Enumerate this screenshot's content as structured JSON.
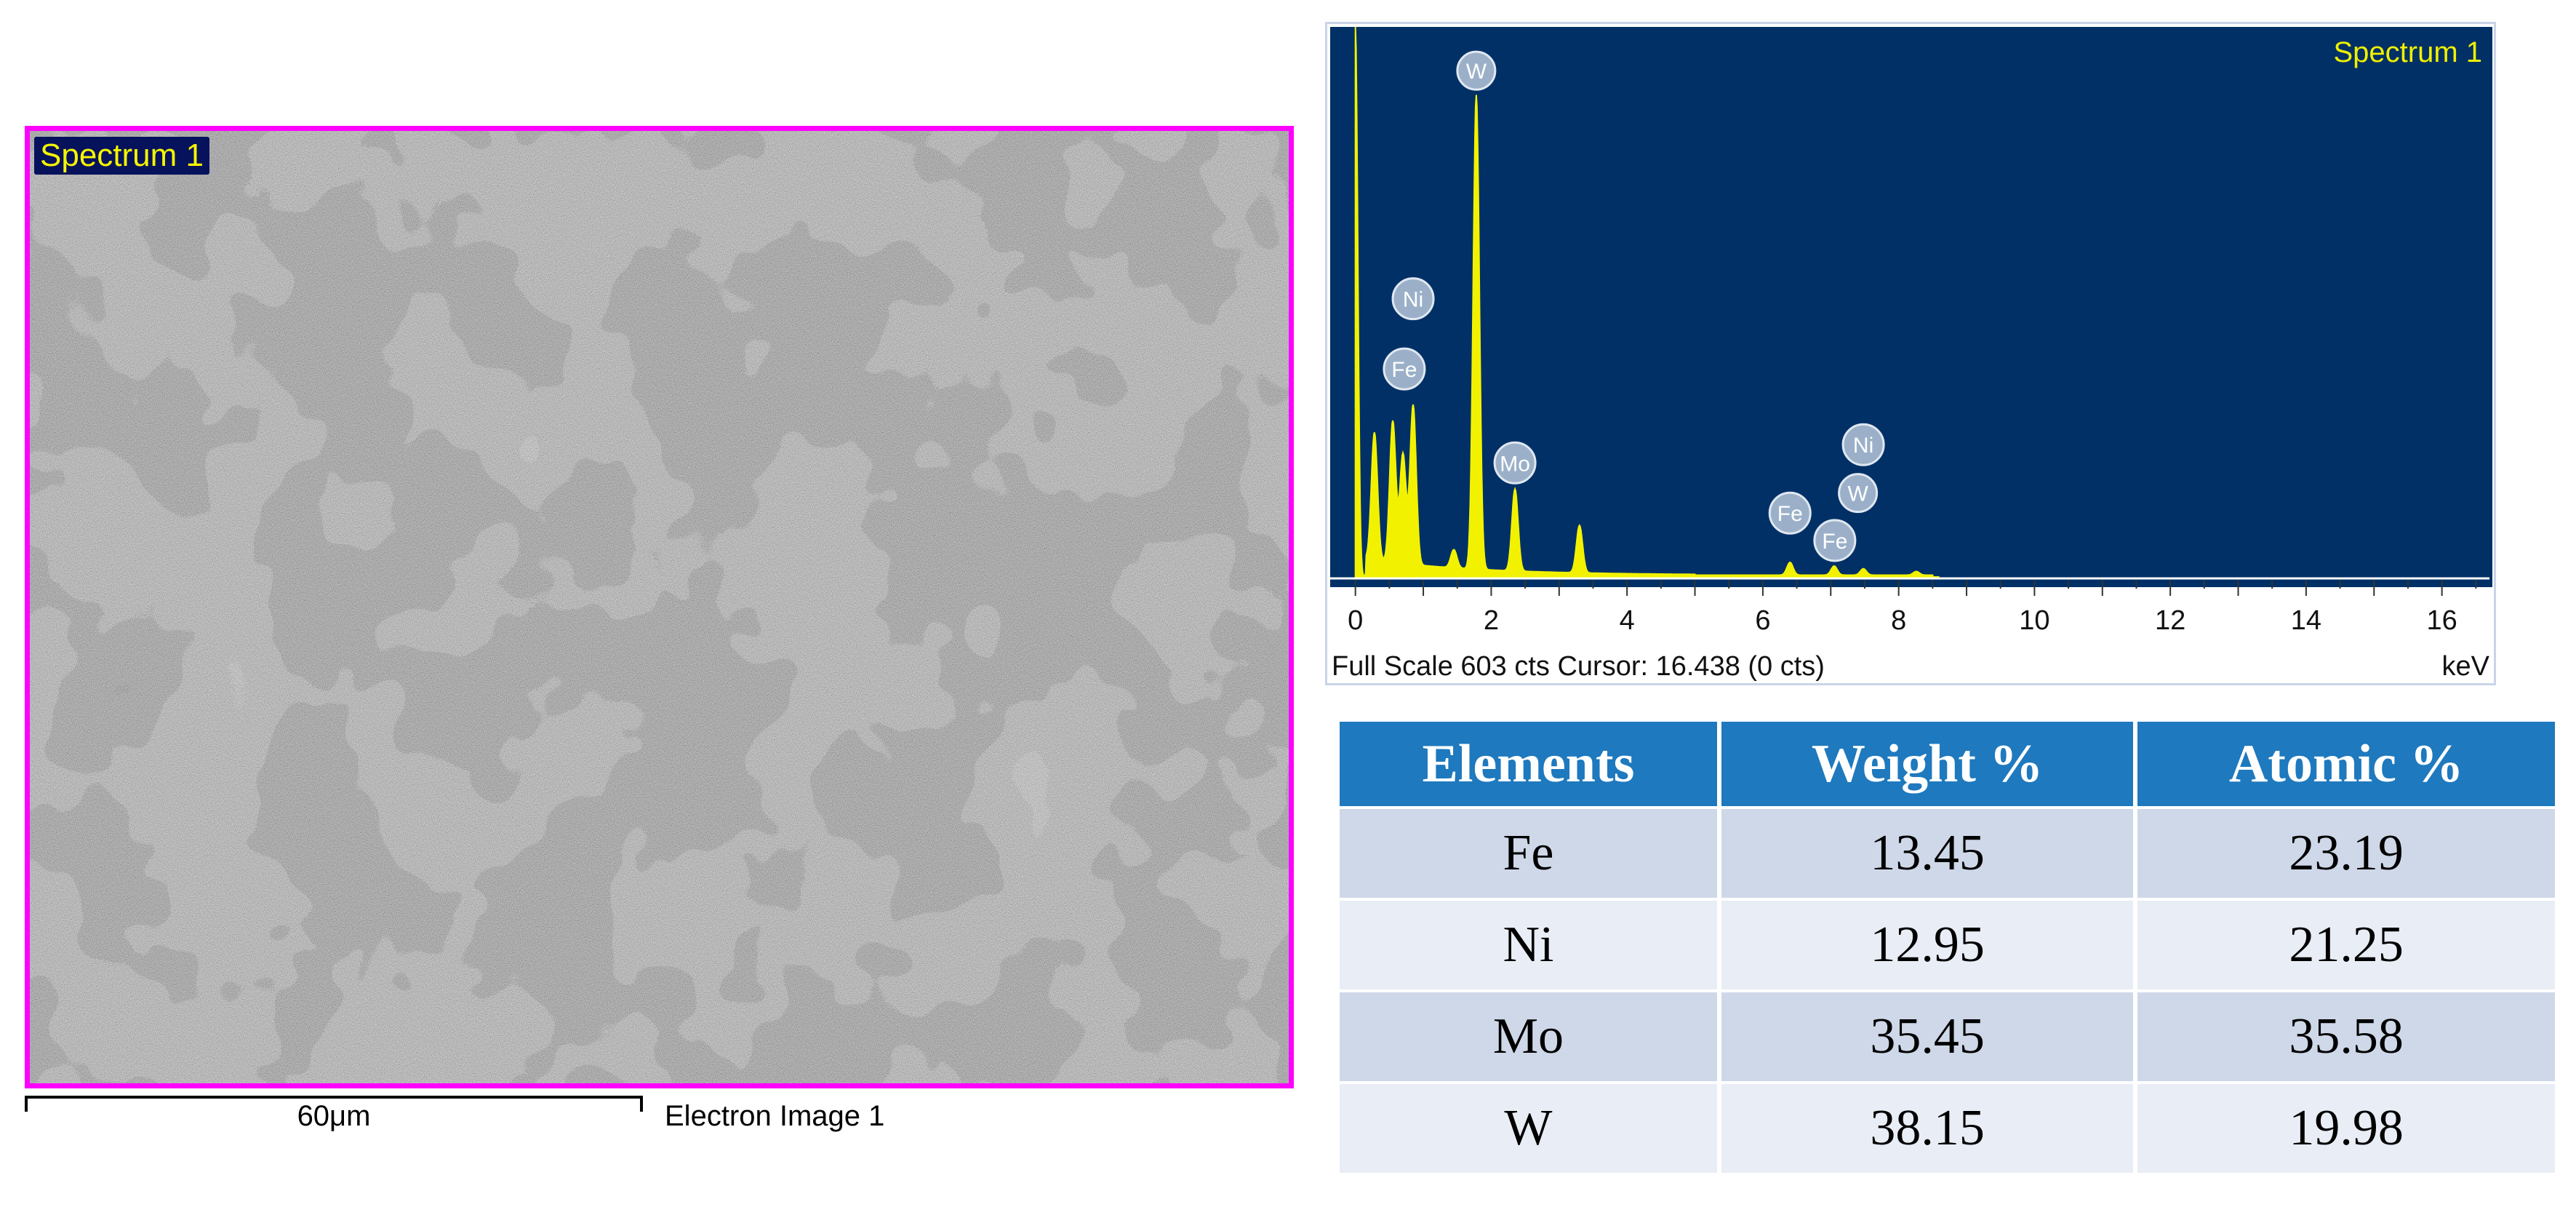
{
  "sem": {
    "label": "Spectrum 1",
    "scale_bar": "60μm",
    "caption": "Electron Image 1"
  },
  "spectrum": {
    "title": "Spectrum 1",
    "footer": "Full Scale 603 cts Cursor: 16.438  (0 cts)",
    "unit": "keV",
    "colors": {
      "background": "#003066",
      "trace": "#f2f200",
      "badge": "#9bb0c8"
    },
    "chart_data": {
      "type": "area",
      "title": "Spectrum 1",
      "xlabel": "keV",
      "xlim": [
        -0.2,
        16.7
      ],
      "ylim": [
        0,
        603
      ],
      "x_ticks": [
        0,
        2,
        4,
        6,
        8,
        10,
        12,
        14,
        16
      ],
      "peaks": [
        {
          "x": 0.0,
          "y": 603
        },
        {
          "x": 0.28,
          "y": 140
        },
        {
          "x": 0.55,
          "y": 155
        },
        {
          "x": 0.7,
          "y": 120
        },
        {
          "x": 0.85,
          "y": 175
        },
        {
          "x": 1.45,
          "y": 20
        },
        {
          "x": 1.78,
          "y": 520
        },
        {
          "x": 2.35,
          "y": 90
        },
        {
          "x": 3.3,
          "y": 52
        },
        {
          "x": 6.4,
          "y": 14
        },
        {
          "x": 7.05,
          "y": 10
        },
        {
          "x": 7.48,
          "y": 7
        },
        {
          "x": 8.26,
          "y": 4
        }
      ],
      "labels": [
        {
          "text": "W",
          "x": 1.78,
          "y": 555
        },
        {
          "text": "Ni",
          "x": 0.85,
          "y": 305
        },
        {
          "text": "Fe",
          "x": 0.72,
          "y": 228
        },
        {
          "text": "Mo",
          "x": 2.35,
          "y": 125
        },
        {
          "text": "Ni",
          "x": 7.48,
          "y": 145
        },
        {
          "text": "W",
          "x": 7.4,
          "y": 92
        },
        {
          "text": "Fe",
          "x": 6.4,
          "y": 70
        },
        {
          "text": "Fe",
          "x": 7.06,
          "y": 40
        }
      ]
    }
  },
  "table": {
    "headers": [
      "Elements",
      "Weight %",
      "Atomic %"
    ],
    "rows": [
      [
        "Fe",
        "13.45",
        "23.19"
      ],
      [
        "Ni",
        "12.95",
        "21.25"
      ],
      [
        "Mo",
        "35.45",
        "35.58"
      ],
      [
        "W",
        "38.15",
        "19.98"
      ]
    ]
  }
}
